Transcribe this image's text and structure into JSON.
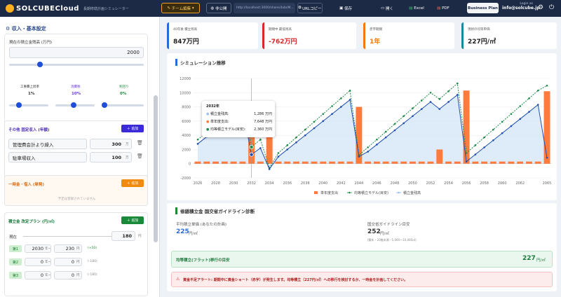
{
  "topbar": {
    "logo": "SOLCUBECloud",
    "subtitle": "長期修繕計画シミュレーター",
    "team_edit": "チーム編集",
    "private": "非公開",
    "url": "http://localhost:3000/share/4xbcM...",
    "url_copy": "URLコピー",
    "save": "保存",
    "open": "開く",
    "excel": "Excel",
    "pdf": "PDF",
    "business_plan": "Business Plan",
    "login_label": "Login as",
    "login_email": "info@solcube.jp"
  },
  "sidebar": {
    "title": "収入・基本設定",
    "balance_label": "現在の積立金残高 (万円)",
    "balance_value": "2000",
    "rates": [
      {
        "label": "工事費上昇率",
        "value": "1%",
        "color": "#333333"
      },
      {
        "label": "消費税",
        "value": "10%",
        "color": "#6a3ad8"
      },
      {
        "label": "利回り",
        "value": "0%",
        "color": "#1a8a3a"
      }
    ],
    "other_income": {
      "title": "その他 固定収入 (年額)",
      "add": "追加",
      "items": [
        {
          "name": "管理費会計より繰入",
          "value": "300",
          "unit": "万"
        },
        {
          "name": "駐車場収入",
          "value": "100",
          "unit": "万"
        }
      ]
    },
    "lump": {
      "title": "一時金・借入 (単発)",
      "add": "追加",
      "empty": "予定は登録されていません"
    },
    "plan": {
      "title": "積立金 改定プラン (円/㎡)",
      "add": "追加",
      "current_label": "現在",
      "current_value": "180",
      "unit": "円",
      "steps": [
        {
          "badge": "第1",
          "year": "2030",
          "year_unit": "年~",
          "price": "230",
          "price_unit": "円",
          "diff": "(+50)"
        },
        {
          "badge": "第2",
          "year": "0",
          "year_unit": "年~",
          "price": "0",
          "price_unit": "円",
          "diff": "(-180)"
        },
        {
          "badge": "第3",
          "year": "0",
          "year_unit": "年~",
          "price": "0",
          "price_unit": "円",
          "diff": "(-180)"
        }
      ]
    }
  },
  "kpis": [
    {
      "title": "40年後 積立残高",
      "value": "847万円",
      "color": "#222222"
    },
    {
      "title": "期間中 最低残高",
      "value": "-762万円",
      "color": "#d62828"
    },
    {
      "title": "赤字期間",
      "value": "1年",
      "color": "#f07a10"
    },
    {
      "title": "現状の均等単価",
      "value": "227円/㎡",
      "color": "#222222"
    }
  ],
  "simulation": {
    "title": "シミュレーション推移",
    "tooltip": {
      "year": "2032年",
      "rows": [
        {
          "label": "積立金残高:",
          "value": "1,286 万円"
        },
        {
          "label": "単年度支出:",
          "value": "7,648 万円"
        },
        {
          "label": "均等積立モデル(目安):",
          "value": "2,360 万円"
        }
      ]
    },
    "legend": [
      {
        "name": "単年度支出",
        "color": "#ff7a3d"
      },
      {
        "name": "均等積立モデル(目安)",
        "color": "#1f8a4a"
      },
      {
        "name": "積立金残高",
        "color": "#9fc2e8"
      }
    ]
  },
  "chart_data": {
    "type": "bar",
    "yticks": [
      "12000",
      "10000",
      "8000",
      "6000",
      "4000",
      "2000",
      "0",
      "-2000"
    ],
    "ylim": [
      -2000,
      12000
    ],
    "xticks": [
      "2026",
      "2028",
      "2030",
      "2032",
      "2034",
      "2036",
      "2038",
      "2040",
      "2042",
      "2044",
      "2046",
      "2048",
      "2050",
      "2052",
      "2054",
      "2056",
      "2058",
      "2060",
      "2062",
      "2065"
    ],
    "years": [
      2026,
      2027,
      2028,
      2029,
      2030,
      2031,
      2032,
      2033,
      2034,
      2035,
      2036,
      2037,
      2038,
      2039,
      2040,
      2041,
      2042,
      2043,
      2044,
      2045,
      2046,
      2047,
      2048,
      2049,
      2050,
      2051,
      2052,
      2053,
      2054,
      2055,
      2056,
      2057,
      2058,
      2059,
      2060,
      2061,
      2062,
      2063,
      2064,
      2065
    ],
    "series": [
      {
        "name": "単年度支出",
        "values": [
          300,
          300,
          300,
          300,
          300,
          300,
          7648,
          300,
          6400,
          300,
          300,
          300,
          300,
          300,
          300,
          300,
          300,
          300,
          8000,
          300,
          300,
          300,
          300,
          300,
          300,
          300,
          300,
          2000,
          300,
          300,
          10300,
          300,
          300,
          300,
          300,
          300,
          300,
          300,
          300,
          10200
        ]
      },
      {
        "name": "均等積立モデル(目安)",
        "values": [
          3400,
          4400,
          5400,
          6400,
          7400,
          8400,
          2360,
          3400,
          -600,
          1500,
          2600,
          3700,
          4800,
          5900,
          7000,
          8100,
          9200,
          10300,
          1200,
          2300,
          3400,
          4500,
          5600,
          6700,
          7800,
          8900,
          10000,
          9100,
          10200,
          11300,
          1500,
          2600,
          3700,
          4800,
          5900,
          7000,
          8100,
          9200,
          10300,
          11000
        ]
      },
      {
        "name": "積立金残高",
        "values": [
          2800,
          3800,
          4800,
          5800,
          6800,
          7800,
          1286,
          2200,
          -762,
          1000,
          2000,
          3000,
          4000,
          5000,
          6000,
          7000,
          8000,
          9000,
          1000,
          1700,
          2700,
          3700,
          4700,
          5700,
          6700,
          7700,
          8700,
          7700,
          8700,
          9700,
          300,
          1300,
          2300,
          3300,
          4300,
          5300,
          6300,
          7300,
          8300,
          847
        ]
      }
    ]
  },
  "diagnosis": {
    "title": "修繕積立金 国交省ガイドライン診断",
    "avg_label": "平均積立単価 (あなたの計画)",
    "avg_value": "225",
    "avg_unit": "円/㎡",
    "guide_label": "国交省ガイドライン目安",
    "guide_value": "252",
    "guide_unit": "円/㎡",
    "guide_note": "(築年・20階未満・5,000〜10,000㎡)",
    "flat_label": "均等積立(フラット)移行の目安",
    "flat_value": "227",
    "flat_unit": "円/㎡",
    "alert": "資金不足アラート: 期間中に資金ショート（赤字）が発生します。均等積立（227円/㎡）への移行を検討するか、一時金を計画してください。"
  }
}
